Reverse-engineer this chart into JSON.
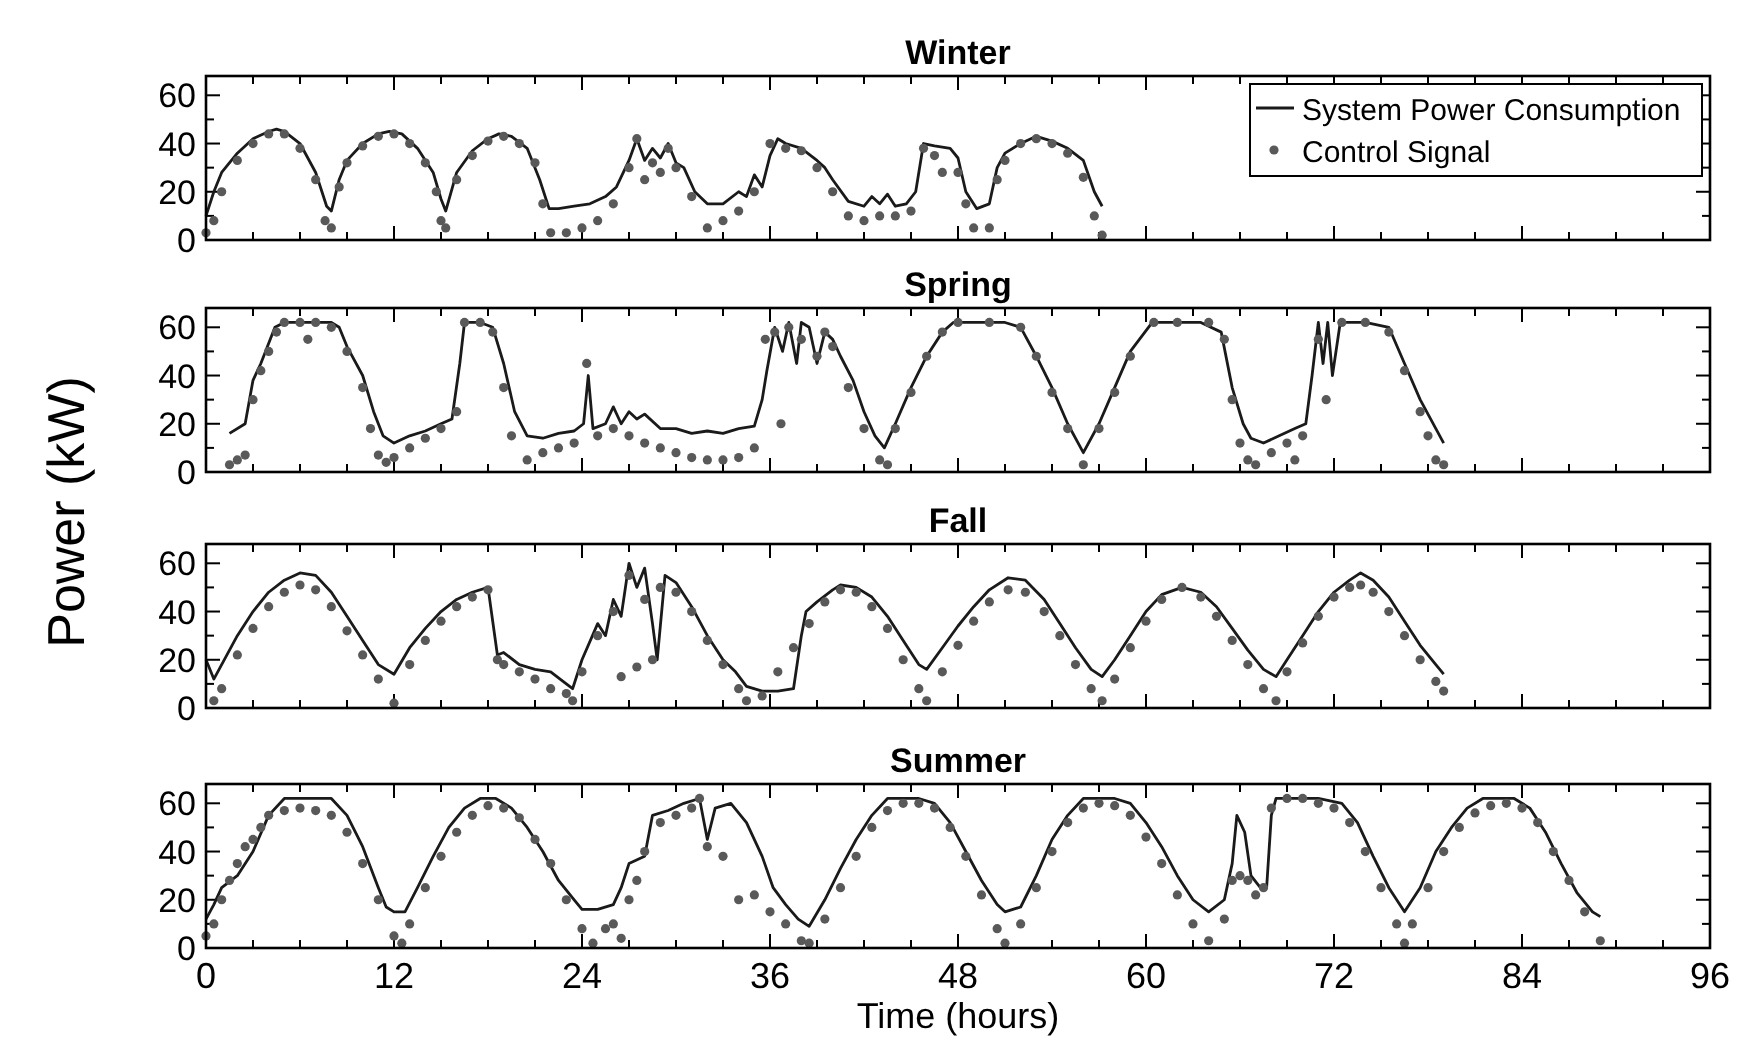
{
  "chart_data": [
    {
      "type": "line",
      "title": "Winter",
      "ylabel": "Power (kW)",
      "xlim": [
        0,
        96
      ],
      "ylim": [
        0,
        68
      ],
      "xticks": [
        0,
        {
          "value": 3,
          "label": null
        },
        {
          "value": 6,
          "label": null
        },
        {
          "value": 9,
          "label": null
        },
        12,
        {
          "value": 15,
          "label": null
        },
        {
          "value": 18,
          "label": null
        },
        {
          "value": 21,
          "label": null
        },
        24,
        {
          "value": 27,
          "label": null
        },
        {
          "value": 30,
          "label": null
        },
        {
          "value": 33,
          "label": null
        },
        36,
        {
          "value": 39,
          "label": null
        },
        {
          "value": 42,
          "label": null
        },
        {
          "value": 45,
          "label": null
        },
        48,
        {
          "value": 51,
          "label": null
        },
        {
          "value": 54,
          "label": null
        },
        {
          "value": 57,
          "label": null
        },
        60,
        {
          "value": 63,
          "label": null
        },
        {
          "value": 66,
          "label": null
        },
        {
          "value": 69,
          "label": null
        },
        72,
        {
          "value": 75,
          "label": null
        },
        {
          "value": 78,
          "label": null
        },
        {
          "value": 81,
          "label": null
        },
        84,
        {
          "value": 87,
          "label": null
        },
        {
          "value": 90,
          "label": null
        },
        {
          "value": 93,
          "label": null
        },
        96
      ],
      "yticks": [
        0,
        {
          "value": 10,
          "label": null
        },
        20,
        {
          "value": 30,
          "label": null
        },
        40,
        {
          "value": 50,
          "label": null
        },
        60
      ],
      "tick_labels": "y",
      "legend": "top right",
      "series": [
        {
          "name": "System Power Consumption",
          "color": "#1a1a1a",
          "line_style": "solid",
          "x": [
            0,
            0.5,
            1,
            2,
            3,
            4,
            4.5,
            5,
            6,
            7,
            7.7,
            8,
            8.5,
            9,
            10,
            11,
            11.7,
            12.5,
            13.5,
            14.5,
            15,
            15.3,
            16,
            17,
            18,
            18.7,
            19.5,
            20.5,
            21.3,
            21.9,
            22.5,
            23.5,
            24.5,
            25.5,
            26.2,
            27,
            27.5,
            28,
            28.5,
            29,
            29.5,
            30,
            30.5,
            31.2,
            32,
            33,
            34,
            34.5,
            35,
            35.5,
            36,
            36.5,
            37,
            38,
            39,
            39.5,
            40,
            41,
            42,
            42.5,
            43,
            43.5,
            44,
            44.7,
            45.3,
            45.8,
            46.5,
            47.5,
            48,
            48.5,
            49.2,
            50,
            50.5,
            51,
            52,
            53,
            54,
            55,
            56,
            56.7,
            57.2
          ],
          "values": [
            10,
            20,
            28,
            36,
            42,
            45,
            46,
            45,
            40,
            28,
            14,
            12,
            25,
            33,
            40,
            44,
            45,
            44,
            38,
            28,
            17,
            12,
            28,
            37,
            42,
            44,
            43,
            38,
            25,
            13,
            13,
            14,
            15,
            18,
            22,
            33,
            42,
            33,
            38,
            34,
            40,
            32,
            30,
            20,
            15,
            15,
            20,
            18,
            27,
            22,
            35,
            42,
            40,
            38,
            33,
            30,
            25,
            16,
            14,
            18,
            15,
            19,
            14,
            15,
            20,
            40,
            39,
            38,
            34,
            20,
            13,
            15,
            30,
            36,
            40,
            43,
            41,
            38,
            33,
            20,
            14
          ]
        },
        {
          "name": "Control Signal",
          "type": "scatter",
          "color": "#595959",
          "marker": "circle",
          "x": [
            0,
            0.5,
            1,
            2,
            3,
            4,
            5,
            6,
            7,
            7.6,
            8,
            8.5,
            9,
            10,
            11,
            12,
            13,
            14,
            14.7,
            15,
            15.3,
            16,
            17,
            18,
            19,
            20,
            21,
            21.5,
            22,
            23,
            24,
            25,
            26,
            27,
            27.5,
            28,
            28.5,
            29,
            29.5,
            30,
            31,
            32,
            33,
            34,
            35,
            36,
            37,
            38,
            39,
            40,
            41,
            42,
            43,
            44,
            45,
            45.8,
            46.5,
            47,
            48,
            48.5,
            49,
            50,
            50.5,
            51,
            52,
            53,
            54,
            55,
            56,
            56.7,
            57.2
          ],
          "values": [
            3,
            8,
            20,
            33,
            40,
            44,
            44,
            38,
            25,
            8,
            5,
            22,
            32,
            39,
            43,
            44,
            40,
            32,
            20,
            8,
            5,
            25,
            35,
            41,
            43,
            40,
            32,
            15,
            3,
            3,
            5,
            8,
            15,
            30,
            42,
            25,
            32,
            28,
            38,
            30,
            18,
            5,
            8,
            12,
            20,
            40,
            38,
            37,
            30,
            20,
            10,
            8,
            10,
            10,
            12,
            38,
            35,
            28,
            28,
            15,
            5,
            5,
            25,
            33,
            40,
            42,
            40,
            36,
            26,
            10,
            2
          ]
        }
      ]
    },
    {
      "type": "line",
      "title": "Spring",
      "xlim": [
        0,
        96
      ],
      "ylim": [
        0,
        68
      ],
      "xticks": [
        0,
        {
          "value": 3,
          "label": null
        },
        {
          "value": 6,
          "label": null
        },
        {
          "value": 9,
          "label": null
        },
        12,
        {
          "value": 15,
          "label": null
        },
        {
          "value": 18,
          "label": null
        },
        {
          "value": 21,
          "label": null
        },
        24,
        {
          "value": 27,
          "label": null
        },
        {
          "value": 30,
          "label": null
        },
        {
          "value": 33,
          "label": null
        },
        36,
        {
          "value": 39,
          "label": null
        },
        {
          "value": 42,
          "label": null
        },
        {
          "value": 45,
          "label": null
        },
        48,
        {
          "value": 51,
          "label": null
        },
        {
          "value": 54,
          "label": null
        },
        {
          "value": 57,
          "label": null
        },
        60,
        {
          "value": 63,
          "label": null
        },
        {
          "value": 66,
          "label": null
        },
        {
          "value": 69,
          "label": null
        },
        72,
        {
          "value": 75,
          "label": null
        },
        {
          "value": 78,
          "label": null
        },
        {
          "value": 81,
          "label": null
        },
        84,
        {
          "value": 87,
          "label": null
        },
        {
          "value": 90,
          "label": null
        },
        {
          "value": 93,
          "label": null
        },
        96
      ],
      "yticks": [
        0,
        {
          "value": 10,
          "label": null
        },
        20,
        {
          "value": 30,
          "label": null
        },
        40,
        {
          "value": 50,
          "label": null
        },
        60
      ],
      "tick_labels": "y",
      "series": [
        {
          "color": "#1a1a1a",
          "line_style": "solid",
          "x": [
            1.5,
            2.5,
            3,
            3.5,
            4.4,
            5,
            6,
            7,
            8,
            8.5,
            9,
            10,
            10.7,
            11.3,
            12,
            13,
            14,
            15,
            15.7,
            16.2,
            16.5,
            17.5,
            18.3,
            19,
            19.7,
            20.5,
            21.5,
            22.5,
            23.5,
            24.1,
            24.4,
            24.7,
            25.5,
            26,
            26.5,
            27,
            27.5,
            28,
            29,
            30,
            31,
            32,
            33,
            34,
            35,
            35.5,
            35.8,
            36.3,
            36.8,
            37.2,
            37.7,
            38,
            38.5,
            39,
            39.5,
            40,
            40.5,
            41.3,
            42,
            42.7,
            43.3,
            44,
            45,
            46,
            47,
            47.7,
            49,
            50,
            51,
            52,
            53,
            54,
            55,
            56,
            57,
            58,
            59,
            60.4,
            61.5,
            62.5,
            63.5,
            64.8,
            65.5,
            66.2,
            66.7,
            67.5,
            68.5,
            69.5,
            70.2,
            70.6,
            71,
            71.3,
            71.6,
            71.9,
            72.4,
            74,
            75.5,
            76.5,
            77.5,
            78.5,
            79
          ],
          "values": [
            16,
            20,
            38,
            45,
            60,
            62,
            62,
            62,
            62,
            60,
            52,
            40,
            25,
            15,
            12,
            15,
            17,
            20,
            22,
            45,
            62,
            62,
            60,
            45,
            25,
            15,
            14,
            16,
            17,
            20,
            40,
            18,
            20,
            27,
            20,
            25,
            22,
            24,
            18,
            18,
            16,
            17,
            16,
            18,
            19,
            30,
            42,
            60,
            50,
            62,
            45,
            62,
            60,
            45,
            58,
            55,
            48,
            38,
            25,
            15,
            10,
            20,
            35,
            48,
            58,
            62,
            62,
            62,
            62,
            60,
            48,
            35,
            20,
            8,
            20,
            35,
            50,
            62,
            62,
            62,
            62,
            58,
            35,
            20,
            14,
            12,
            15,
            18,
            20,
            40,
            62,
            45,
            62,
            40,
            62,
            62,
            60,
            45,
            30,
            18,
            12
          ]
        },
        {
          "type": "scatter",
          "color": "#595959",
          "marker": "circle",
          "x": [
            1.5,
            2,
            2.5,
            3,
            3.5,
            4,
            4.5,
            5,
            6,
            6.5,
            7,
            8,
            9,
            10,
            10.5,
            11,
            11.5,
            12,
            13,
            14,
            15,
            16,
            16.5,
            17.5,
            18.3,
            19,
            19.5,
            20.5,
            21.5,
            22.5,
            23.5,
            24.3,
            25,
            26,
            27,
            28,
            29,
            30,
            31,
            32,
            33,
            34,
            35,
            35.7,
            36.3,
            36.7,
            37.2,
            38,
            39,
            39.5,
            40,
            41,
            42,
            43,
            43.5,
            44,
            45,
            46,
            47,
            48,
            50,
            52,
            53,
            54,
            55,
            56,
            57,
            58,
            59,
            60.5,
            62,
            64,
            65,
            65.5,
            66,
            66.5,
            67,
            68,
            69,
            69.5,
            70,
            71,
            71.5,
            72.5,
            74,
            75.5,
            76.5,
            77.5,
            78,
            78.5,
            79
          ],
          "values": [
            3,
            5,
            7,
            30,
            42,
            50,
            58,
            62,
            62,
            55,
            62,
            60,
            50,
            35,
            18,
            7,
            4,
            6,
            10,
            14,
            18,
            25,
            62,
            62,
            58,
            35,
            15,
            5,
            8,
            10,
            12,
            45,
            15,
            18,
            15,
            12,
            10,
            8,
            6,
            5,
            5,
            6,
            10,
            55,
            58,
            20,
            60,
            55,
            48,
            58,
            52,
            35,
            18,
            5,
            3,
            18,
            33,
            48,
            58,
            62,
            62,
            60,
            48,
            33,
            18,
            3,
            18,
            33,
            48,
            62,
            62,
            62,
            55,
            30,
            12,
            5,
            3,
            8,
            12,
            5,
            15,
            55,
            30,
            62,
            62,
            58,
            42,
            25,
            15,
            5,
            3
          ]
        }
      ]
    },
    {
      "type": "line",
      "title": "Fall",
      "xlim": [
        0,
        96
      ],
      "ylim": [
        0,
        68
      ],
      "xticks": [
        0,
        {
          "value": 3,
          "label": null
        },
        {
          "value": 6,
          "label": null
        },
        {
          "value": 9,
          "label": null
        },
        12,
        {
          "value": 15,
          "label": null
        },
        {
          "value": 18,
          "label": null
        },
        {
          "value": 21,
          "label": null
        },
        24,
        {
          "value": 27,
          "label": null
        },
        {
          "value": 30,
          "label": null
        },
        {
          "value": 33,
          "label": null
        },
        36,
        {
          "value": 39,
          "label": null
        },
        {
          "value": 42,
          "label": null
        },
        {
          "value": 45,
          "label": null
        },
        48,
        {
          "value": 51,
          "label": null
        },
        {
          "value": 54,
          "label": null
        },
        {
          "value": 57,
          "label": null
        },
        60,
        {
          "value": 63,
          "label": null
        },
        {
          "value": 66,
          "label": null
        },
        {
          "value": 69,
          "label": null
        },
        72,
        {
          "value": 75,
          "label": null
        },
        {
          "value": 78,
          "label": null
        },
        {
          "value": 81,
          "label": null
        },
        84,
        {
          "value": 87,
          "label": null
        },
        {
          "value": 90,
          "label": null
        },
        {
          "value": 93,
          "label": null
        },
        96
      ],
      "yticks": [
        0,
        {
          "value": 10,
          "label": null
        },
        20,
        {
          "value": 30,
          "label": null
        },
        40,
        {
          "value": 50,
          "label": null
        },
        60
      ],
      "tick_labels": "y",
      "series": [
        {
          "color": "#1a1a1a",
          "line_style": "solid",
          "x": [
            0,
            0.5,
            1,
            2,
            3,
            4,
            5,
            6,
            7,
            8,
            9,
            10,
            11,
            12,
            13,
            14,
            15,
            16,
            17,
            18,
            18.6,
            19,
            20,
            21,
            22,
            23,
            23.4,
            24,
            25,
            25.5,
            26,
            26.5,
            27,
            27.5,
            28,
            28.5,
            28.8,
            29.3,
            30,
            31,
            32,
            33,
            33.8,
            34.5,
            35.5,
            36.5,
            37.5,
            38,
            38.3,
            39,
            40,
            40.5,
            41.5,
            42.5,
            43.5,
            44.5,
            45.5,
            46,
            47,
            48,
            49,
            50,
            51.2,
            52.3,
            53.5,
            54.5,
            55.5,
            56.5,
            57.2,
            58,
            59,
            60,
            61,
            62.3,
            63.5,
            64.5,
            65.5,
            66.5,
            67.5,
            68.3,
            69,
            70,
            71,
            72,
            73,
            73.7,
            74.5,
            75.5,
            76.5,
            77.5,
            78.5,
            79
          ],
          "values": [
            20,
            12,
            18,
            30,
            40,
            48,
            53,
            56,
            55,
            48,
            38,
            28,
            18,
            14,
            25,
            33,
            40,
            45,
            48,
            50,
            22,
            23,
            18,
            16,
            15,
            10,
            8,
            20,
            35,
            30,
            45,
            38,
            60,
            50,
            58,
            35,
            20,
            55,
            52,
            42,
            30,
            20,
            15,
            9,
            7,
            7,
            8,
            30,
            40,
            44,
            49,
            51,
            50,
            46,
            38,
            28,
            18,
            16,
            25,
            34,
            42,
            49,
            54,
            53,
            45,
            35,
            25,
            16,
            13,
            20,
            30,
            40,
            47,
            50,
            48,
            42,
            33,
            24,
            16,
            13,
            20,
            30,
            40,
            48,
            53,
            56,
            53,
            46,
            36,
            26,
            18,
            14
          ]
        },
        {
          "type": "scatter",
          "color": "#595959",
          "marker": "circle",
          "x": [
            0.5,
            1,
            2,
            3,
            4,
            5,
            6,
            7,
            8,
            9,
            10,
            11,
            12,
            13,
            14,
            15,
            16,
            17,
            18,
            18.6,
            19,
            20,
            21,
            22,
            23,
            23.4,
            24,
            25,
            26,
            26.5,
            27,
            27.5,
            28,
            28.5,
            29,
            30,
            31,
            32,
            33,
            34,
            34.5,
            35.5,
            36.5,
            37.5,
            38.5,
            39.5,
            40.5,
            41.5,
            42.5,
            43.5,
            44.5,
            45.5,
            46,
            47,
            48,
            49,
            50,
            51.2,
            52.3,
            53.5,
            54.5,
            55.5,
            56.5,
            57.2,
            58,
            59,
            60,
            61,
            62.3,
            63.5,
            64.5,
            65.5,
            66.5,
            67.5,
            68.3,
            69,
            70,
            71,
            72,
            73,
            73.7,
            74.5,
            75.5,
            76.5,
            77.5,
            78.5,
            79
          ],
          "values": [
            3,
            8,
            22,
            33,
            42,
            48,
            51,
            49,
            42,
            32,
            22,
            12,
            2,
            18,
            28,
            36,
            42,
            46,
            49,
            20,
            18,
            15,
            12,
            8,
            6,
            3,
            15,
            30,
            40,
            13,
            55,
            17,
            45,
            20,
            50,
            48,
            40,
            28,
            18,
            8,
            3,
            5,
            15,
            25,
            35,
            44,
            49,
            48,
            42,
            33,
            20,
            8,
            3,
            15,
            26,
            36,
            44,
            49,
            48,
            40,
            30,
            18,
            8,
            3,
            12,
            25,
            36,
            45,
            50,
            46,
            38,
            28,
            18,
            8,
            3,
            15,
            27,
            38,
            46,
            50,
            51,
            48,
            40,
            30,
            20,
            11,
            7
          ]
        }
      ]
    },
    {
      "type": "line",
      "title": "Summer",
      "xlabel": "Time (hours)",
      "xlim": [
        0,
        96
      ],
      "ylim": [
        0,
        68
      ],
      "xticks": [
        0,
        {
          "value": 3,
          "label": null
        },
        {
          "value": 6,
          "label": null
        },
        {
          "value": 9,
          "label": null
        },
        12,
        {
          "value": 15,
          "label": null
        },
        {
          "value": 18,
          "label": null
        },
        {
          "value": 21,
          "label": null
        },
        24,
        {
          "value": 27,
          "label": null
        },
        {
          "value": 30,
          "label": null
        },
        {
          "value": 33,
          "label": null
        },
        36,
        {
          "value": 39,
          "label": null
        },
        {
          "value": 42,
          "label": null
        },
        {
          "value": 45,
          "label": null
        },
        48,
        {
          "value": 51,
          "label": null
        },
        {
          "value": 54,
          "label": null
        },
        {
          "value": 57,
          "label": null
        },
        60,
        {
          "value": 63,
          "label": null
        },
        {
          "value": 66,
          "label": null
        },
        {
          "value": 69,
          "label": null
        },
        72,
        {
          "value": 75,
          "label": null
        },
        {
          "value": 78,
          "label": null
        },
        {
          "value": 81,
          "label": null
        },
        84,
        {
          "value": 87,
          "label": null
        },
        {
          "value": 90,
          "label": null
        },
        {
          "value": 93,
          "label": null
        },
        96
      ],
      "yticks": [
        0,
        {
          "value": 10,
          "label": null
        },
        20,
        {
          "value": 30,
          "label": null
        },
        40,
        {
          "value": 50,
          "label": null
        },
        60
      ],
      "series": [
        {
          "color": "#1a1a1a",
          "line_style": "solid",
          "x": [
            0,
            0.5,
            1,
            2,
            3,
            4,
            5,
            6,
            7,
            8,
            9,
            10,
            11,
            11.5,
            12,
            12.7,
            13.5,
            14.5,
            15.5,
            16.5,
            17.5,
            18.5,
            19.5,
            20.5,
            21.5,
            22.5,
            23.5,
            24,
            25,
            26,
            26.5,
            27,
            28,
            28.5,
            29.5,
            30.5,
            31.5,
            32,
            32.5,
            33.5,
            34.5,
            35.5,
            36.2,
            37,
            37.8,
            38.5,
            39.5,
            40.5,
            41.5,
            42.5,
            43.5,
            44.5,
            45.5,
            46.5,
            47.5,
            48.5,
            49.5,
            50.5,
            51,
            52,
            53,
            54,
            55,
            56,
            57,
            58,
            59,
            60,
            61,
            62,
            63,
            64,
            65,
            65.5,
            65.8,
            66.3,
            66.7,
            67.3,
            67.7,
            68,
            68.3,
            69.5,
            71,
            72.5,
            73.5,
            74.5,
            75.5,
            76.5,
            77.5,
            78.5,
            79.5,
            80.5,
            81.5,
            82.5,
            83.5,
            84.5,
            85.5,
            86.5,
            87.5,
            88.5,
            89
          ],
          "values": [
            12,
            18,
            25,
            30,
            40,
            55,
            62,
            62,
            62,
            62,
            55,
            42,
            25,
            17,
            15,
            15,
            25,
            38,
            50,
            58,
            62,
            62,
            58,
            50,
            40,
            28,
            20,
            16,
            16,
            18,
            25,
            35,
            38,
            55,
            57,
            60,
            62,
            45,
            58,
            60,
            52,
            38,
            25,
            18,
            12,
            9,
            20,
            33,
            45,
            55,
            62,
            62,
            62,
            60,
            52,
            40,
            28,
            18,
            15,
            17,
            30,
            45,
            55,
            62,
            62,
            62,
            60,
            52,
            42,
            30,
            20,
            15,
            20,
            35,
            55,
            48,
            30,
            25,
            25,
            55,
            62,
            62,
            62,
            60,
            52,
            38,
            25,
            15,
            25,
            40,
            50,
            58,
            62,
            62,
            62,
            58,
            48,
            35,
            23,
            15,
            13
          ]
        },
        {
          "type": "scatter",
          "color": "#595959",
          "marker": "circle",
          "x": [
            0,
            0.5,
            1,
            1.5,
            2,
            2.5,
            3,
            3.5,
            4,
            5,
            6,
            7,
            8,
            9,
            10,
            11,
            12,
            12.5,
            13,
            14,
            15,
            16,
            17,
            18,
            19,
            20,
            21,
            22,
            23,
            24,
            24.7,
            25.5,
            26,
            26.5,
            27,
            27.5,
            28,
            29,
            30,
            31,
            31.5,
            32,
            33,
            34,
            35,
            36,
            37,
            38,
            38.5,
            39.5,
            40.5,
            41.5,
            42.5,
            43.5,
            44.5,
            45.5,
            46.5,
            47.5,
            48.5,
            49.5,
            50.5,
            51,
            52,
            53,
            54,
            55,
            56,
            57,
            58,
            59,
            60,
            61,
            62,
            63,
            64,
            65,
            65.5,
            66,
            66.5,
            67,
            67.5,
            68,
            69,
            70,
            71,
            72,
            73,
            74,
            75,
            76,
            76.5,
            77,
            78,
            79,
            80,
            81,
            82,
            83,
            84,
            85,
            86,
            87,
            88,
            89
          ],
          "values": [
            5,
            10,
            20,
            28,
            35,
            42,
            45,
            50,
            55,
            57,
            58,
            57,
            55,
            48,
            35,
            20,
            5,
            2,
            10,
            25,
            38,
            48,
            55,
            59,
            58,
            54,
            45,
            35,
            20,
            8,
            2,
            8,
            10,
            4,
            20,
            28,
            40,
            52,
            55,
            58,
            62,
            42,
            38,
            20,
            22,
            15,
            10,
            3,
            2,
            12,
            25,
            38,
            50,
            57,
            60,
            60,
            58,
            50,
            38,
            22,
            8,
            2,
            10,
            25,
            40,
            52,
            58,
            60,
            59,
            55,
            46,
            35,
            22,
            10,
            3,
            12,
            28,
            30,
            28,
            22,
            25,
            58,
            62,
            62,
            60,
            58,
            52,
            40,
            25,
            10,
            2,
            10,
            25,
            40,
            50,
            56,
            59,
            60,
            58,
            52,
            40,
            28,
            15,
            3
          ]
        }
      ]
    }
  ]
}
